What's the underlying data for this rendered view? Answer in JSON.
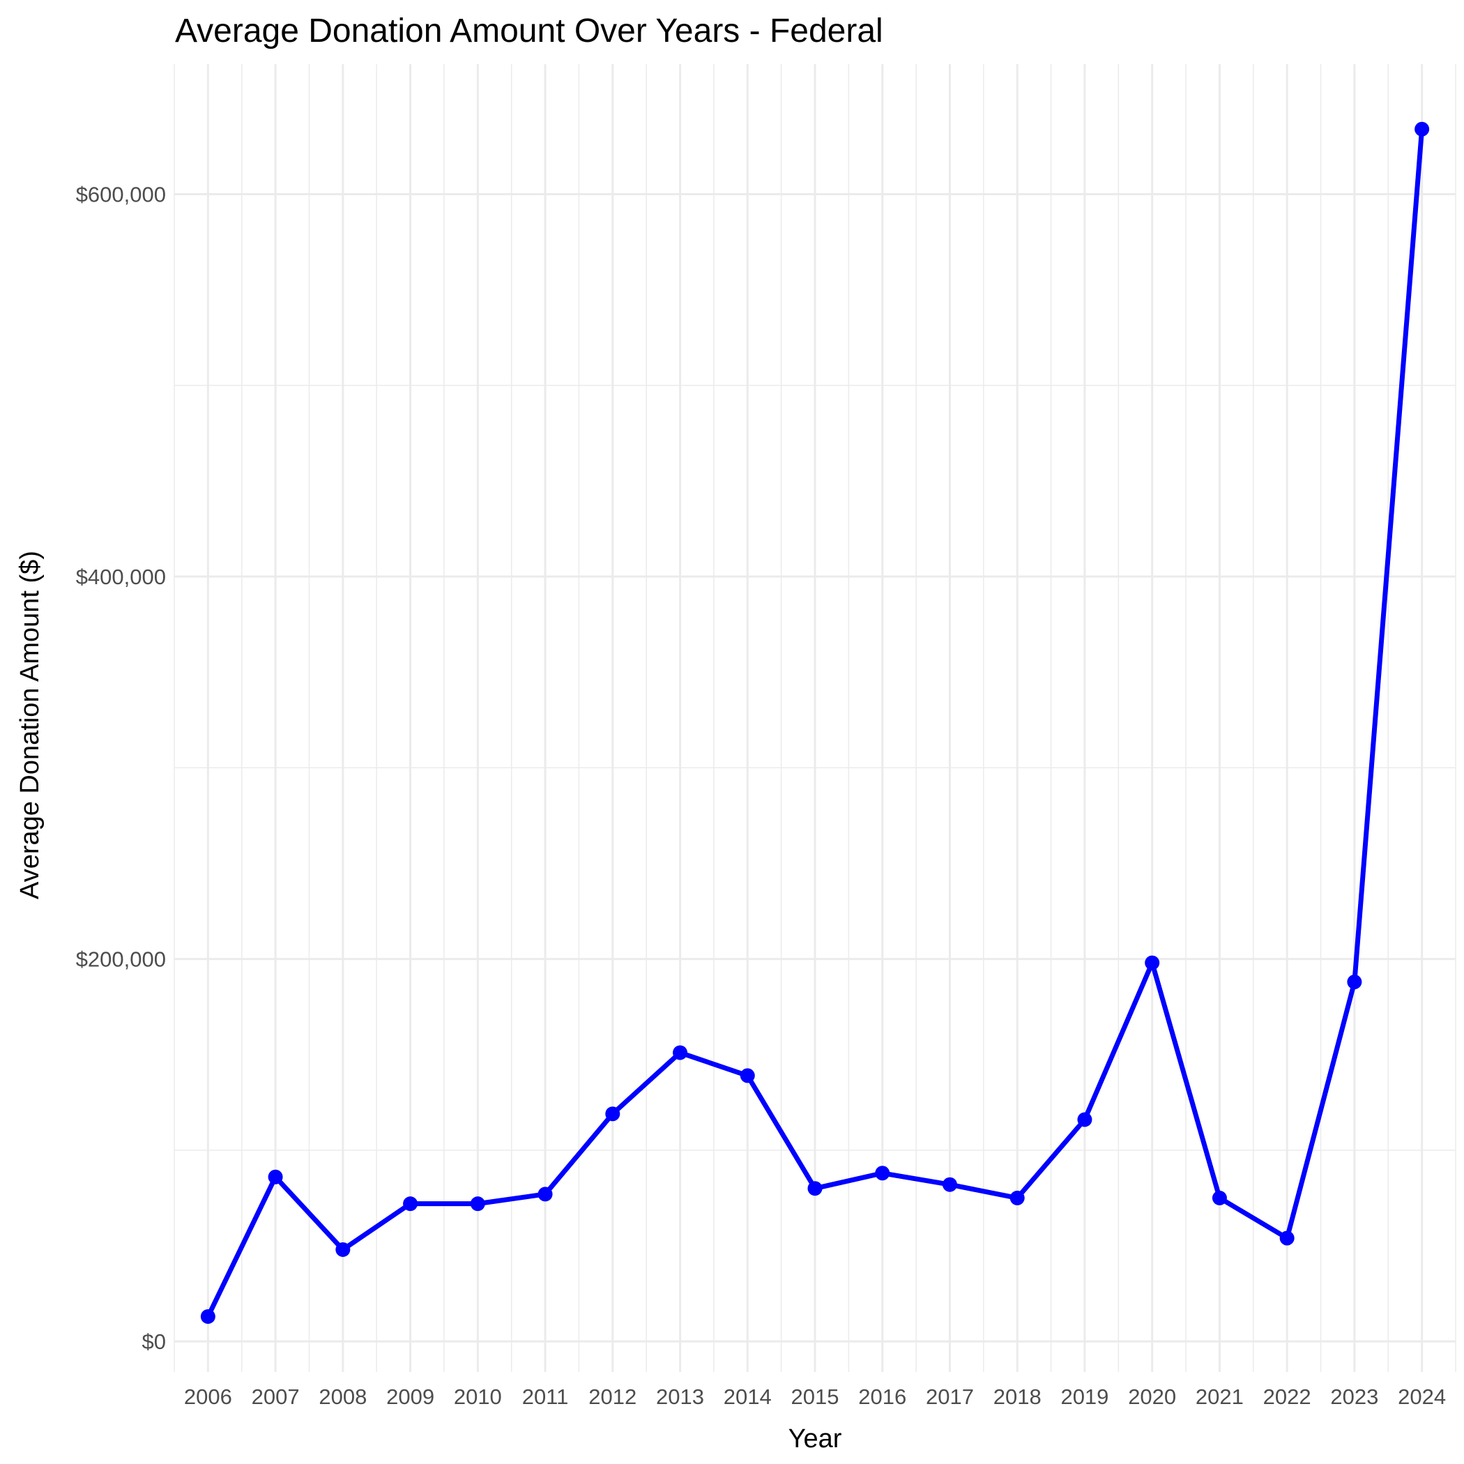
{
  "chart_data": {
    "type": "line",
    "title": "Average Donation Amount Over Years - Federal",
    "xlabel": "Year",
    "ylabel": "Average Donation Amount ($)",
    "x": [
      2006,
      2007,
      2008,
      2009,
      2010,
      2011,
      2012,
      2013,
      2014,
      2015,
      2016,
      2017,
      2018,
      2019,
      2020,
      2021,
      2022,
      2023,
      2024
    ],
    "x_tick_labels": [
      "2006",
      "2007",
      "2008",
      "2009",
      "2010",
      "2011",
      "2012",
      "2013",
      "2014",
      "2015",
      "2016",
      "2017",
      "2018",
      "2019",
      "2020",
      "2021",
      "2022",
      "2023",
      "2024"
    ],
    "values": [
      13000,
      86000,
      48000,
      72000,
      72000,
      77000,
      119000,
      151000,
      139000,
      80000,
      88000,
      82000,
      75000,
      116000,
      198000,
      75000,
      54000,
      188000,
      634000
    ],
    "y_ticks": [
      0,
      200000,
      400000,
      600000
    ],
    "y_tick_labels": [
      "$0",
      "$200,000",
      "$400,000",
      "$600,000"
    ],
    "ylim": [
      -16000,
      668000
    ],
    "xlim": [
      2005.5,
      2024.5
    ],
    "grid": true,
    "line_color": "#0000ff",
    "marker_color": "#0000ff"
  }
}
